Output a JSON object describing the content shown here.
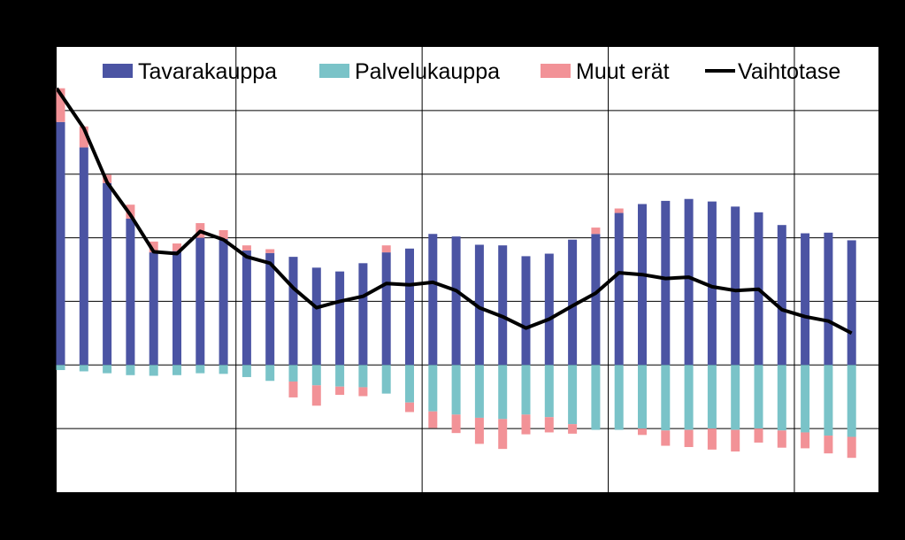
{
  "chart_data": {
    "type": "bar",
    "stacked": true,
    "grid": true,
    "legend_position": "top-right",
    "ylim": [
      -2.0,
      5.0
    ],
    "y_gridlines": [
      -1,
      0,
      1,
      2,
      3,
      4
    ],
    "x_group_separators": [
      8,
      16,
      24,
      32
    ],
    "legend": [
      {
        "label": "Tavarakauppa",
        "kind": "bar",
        "color": "#4b54a3"
      },
      {
        "label": "Palvelukauppa",
        "kind": "bar",
        "color": "#7ac3c8"
      },
      {
        "label": "Muut erät",
        "kind": "bar",
        "color": "#f29297"
      },
      {
        "label": "Vaihtotase",
        "kind": "line",
        "color": "#000000"
      }
    ],
    "series": [
      {
        "name": "Tavarakauppa",
        "color": "#4b54a3",
        "values": [
          3.82,
          3.42,
          2.86,
          2.3,
          1.77,
          1.79,
          2.0,
          1.98,
          1.8,
          1.76,
          1.7,
          1.53,
          1.47,
          1.6,
          1.77,
          1.83,
          2.06,
          2.02,
          1.89,
          1.88,
          1.71,
          1.75,
          1.97,
          2.06,
          2.39,
          2.53,
          2.58,
          2.61,
          2.57,
          2.49,
          2.4,
          2.2,
          2.07,
          2.08,
          1.96
        ]
      },
      {
        "name": "Palvelukauppa",
        "color": "#7ac3c8",
        "values": [
          -0.08,
          -0.1,
          -0.13,
          -0.16,
          -0.17,
          -0.16,
          -0.13,
          -0.14,
          -0.19,
          -0.25,
          -0.26,
          -0.32,
          -0.34,
          -0.35,
          -0.45,
          -0.59,
          -0.73,
          -0.78,
          -0.83,
          -0.85,
          -0.78,
          -0.82,
          -0.93,
          -1.02,
          -1.02,
          -1.0,
          -1.03,
          -1.02,
          -1.0,
          -1.02,
          -1.0,
          -1.03,
          -1.06,
          -1.11,
          -1.13
        ]
      },
      {
        "name": "Muut erät",
        "color": "#f29297",
        "values": [
          0.53,
          0.33,
          0.13,
          0.22,
          0.17,
          0.12,
          0.23,
          0.14,
          0.08,
          0.06,
          -0.25,
          -0.32,
          -0.13,
          -0.14,
          0.11,
          -0.15,
          -0.26,
          -0.29,
          -0.41,
          -0.47,
          -0.31,
          -0.24,
          -0.15,
          0.1,
          0.07,
          -0.1,
          -0.24,
          -0.27,
          -0.33,
          -0.34,
          -0.22,
          -0.27,
          -0.25,
          -0.28,
          -0.33
        ]
      },
      {
        "name": "Vaihtotase",
        "color": "#000000",
        "kind": "line",
        "values": [
          4.35,
          3.72,
          2.87,
          2.36,
          1.78,
          1.75,
          2.1,
          1.97,
          1.7,
          1.6,
          1.21,
          0.9,
          1.0,
          1.08,
          1.28,
          1.26,
          1.3,
          1.17,
          0.9,
          0.76,
          0.58,
          0.72,
          0.93,
          1.13,
          1.45,
          1.42,
          1.36,
          1.38,
          1.23,
          1.17,
          1.19,
          0.87,
          0.76,
          0.69,
          0.5
        ]
      }
    ]
  }
}
